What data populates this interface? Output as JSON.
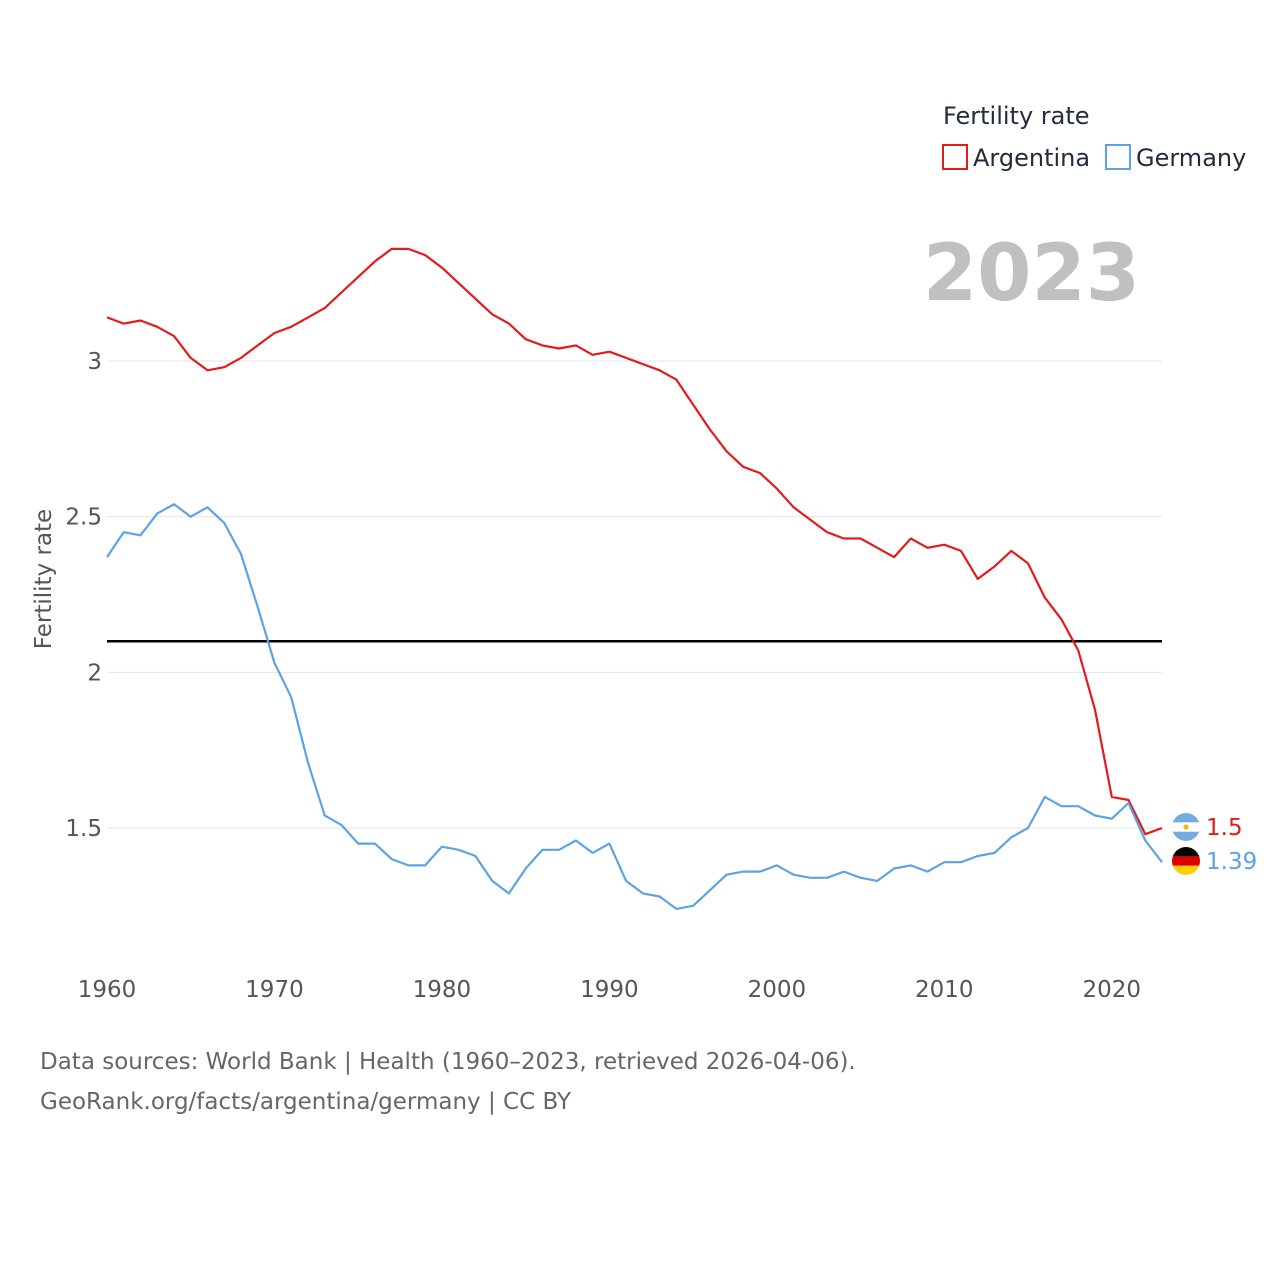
{
  "chart_data": {
    "type": "line",
    "title": "Fertility rate",
    "current_year": "2023",
    "xlabel": "",
    "ylabel": "Fertility rate",
    "x_ticks": [
      "1960",
      "1970",
      "1980",
      "1990",
      "2000",
      "2010",
      "2020"
    ],
    "y_ticks": [
      "1.5",
      "2",
      "2.5",
      "3"
    ],
    "x_range": [
      1960,
      2023
    ],
    "ylim": [
      1.1,
      3.35
    ],
    "reference_line": 2.1,
    "x": [
      1960,
      1961,
      1962,
      1963,
      1964,
      1965,
      1966,
      1967,
      1968,
      1969,
      1970,
      1971,
      1972,
      1973,
      1974,
      1975,
      1976,
      1977,
      1978,
      1979,
      1980,
      1981,
      1982,
      1983,
      1984,
      1985,
      1986,
      1987,
      1988,
      1989,
      1990,
      1991,
      1992,
      1993,
      1994,
      1995,
      1996,
      1997,
      1998,
      1999,
      2000,
      2001,
      2002,
      2003,
      2004,
      2005,
      2006,
      2007,
      2008,
      2009,
      2010,
      2011,
      2012,
      2013,
      2014,
      2015,
      2016,
      2017,
      2018,
      2019,
      2020,
      2021,
      2022,
      2023
    ],
    "series": [
      {
        "name": "Argentina",
        "color": "#e41a1c",
        "end_label": "1.5",
        "flag_icon": "argentina-flag-icon",
        "values": [
          3.14,
          3.12,
          3.13,
          3.11,
          3.08,
          3.01,
          2.97,
          2.98,
          3.01,
          3.05,
          3.09,
          3.11,
          3.14,
          3.17,
          3.22,
          3.27,
          3.32,
          3.36,
          3.36,
          3.34,
          3.3,
          3.25,
          3.2,
          3.15,
          3.12,
          3.07,
          3.05,
          3.04,
          3.05,
          3.02,
          3.03,
          3.01,
          2.99,
          2.97,
          2.94,
          2.86,
          2.78,
          2.71,
          2.66,
          2.64,
          2.59,
          2.53,
          2.49,
          2.45,
          2.43,
          2.43,
          2.4,
          2.37,
          2.43,
          2.4,
          2.41,
          2.39,
          2.3,
          2.34,
          2.39,
          2.35,
          2.24,
          2.17,
          2.07,
          1.88,
          1.6,
          1.59,
          1.48,
          1.5
        ]
      },
      {
        "name": "Germany",
        "color": "#5ba3e6",
        "end_label": "1.39",
        "flag_icon": "germany-flag-icon",
        "values": [
          2.37,
          2.45,
          2.44,
          2.51,
          2.54,
          2.5,
          2.53,
          2.48,
          2.38,
          2.21,
          2.03,
          1.92,
          1.71,
          1.54,
          1.51,
          1.45,
          1.45,
          1.4,
          1.38,
          1.38,
          1.44,
          1.43,
          1.41,
          1.33,
          1.29,
          1.37,
          1.43,
          1.43,
          1.46,
          1.42,
          1.45,
          1.33,
          1.29,
          1.28,
          1.24,
          1.25,
          1.3,
          1.35,
          1.36,
          1.36,
          1.38,
          1.35,
          1.34,
          1.34,
          1.36,
          1.34,
          1.33,
          1.37,
          1.38,
          1.36,
          1.39,
          1.39,
          1.41,
          1.42,
          1.47,
          1.5,
          1.6,
          1.57,
          1.57,
          1.54,
          1.53,
          1.58,
          1.46,
          1.39
        ]
      }
    ],
    "legend": {
      "title": "Fertility rate",
      "placement": "top-right",
      "items": [
        "Argentina",
        "Germany"
      ]
    }
  },
  "source": {
    "line1": "Data sources: World Bank | Health (1960–2023, retrieved 2026-04-06).",
    "line2": "GeoRank.org/facts/argentina/germany | CC BY"
  }
}
